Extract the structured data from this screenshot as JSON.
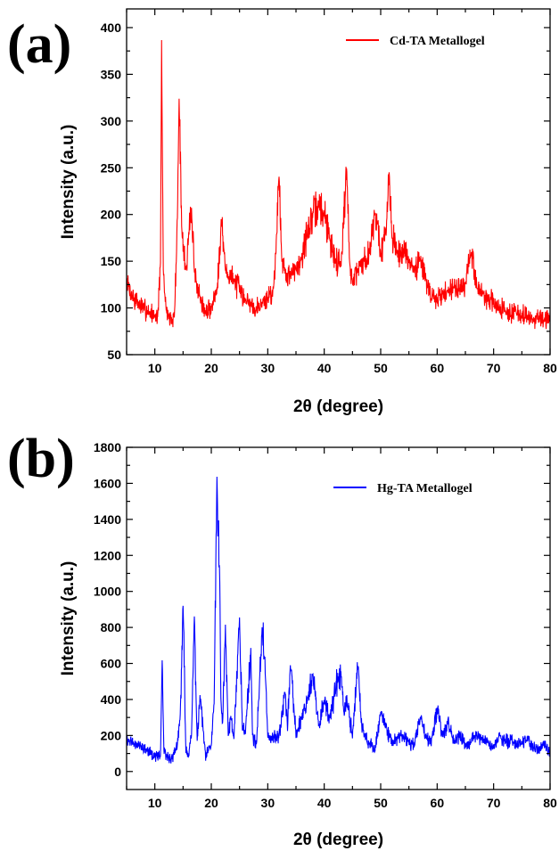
{
  "chart_data": [
    {
      "type": "line",
      "panel_label": "(a)",
      "xlabel": "2θ (degree)",
      "ylabel": "Intensity (a.u.)",
      "xlim": [
        5,
        80
      ],
      "ylim": [
        50,
        420
      ],
      "xticks": [
        10,
        20,
        30,
        40,
        50,
        60,
        70,
        80
      ],
      "yticks": [
        50,
        100,
        150,
        200,
        250,
        300,
        350,
        400
      ],
      "legend_position": "top-right",
      "grid": false,
      "series": [
        {
          "name": "Cd-TA Metallogel",
          "color": "#ff0000",
          "x": [
            5,
            6,
            7,
            8,
            9,
            10,
            10.5,
            11,
            11.2,
            11.5,
            12,
            12.5,
            13,
            13.5,
            14,
            14.3,
            14.8,
            15.5,
            16,
            16.5,
            17,
            18,
            19,
            20,
            21,
            21.8,
            22.5,
            23,
            24,
            25,
            26,
            27,
            28,
            29,
            30,
            31,
            31.5,
            32,
            32.5,
            33,
            34,
            35,
            36,
            37,
            38,
            39,
            40,
            41,
            42,
            43,
            44,
            44.5,
            45,
            46,
            47,
            48,
            49,
            50,
            51,
            51.5,
            52,
            53,
            54,
            55,
            56,
            57,
            58,
            59,
            60,
            61,
            62,
            63,
            64,
            65,
            66,
            67,
            68,
            69,
            70,
            71,
            72,
            73,
            74,
            75,
            76,
            77,
            78,
            79,
            80
          ],
          "y": [
            128,
            112,
            105,
            100,
            96,
            92,
            88,
            150,
            380,
            140,
            100,
            90,
            85,
            95,
            200,
            322,
            180,
            140,
            180,
            200,
            140,
            110,
            95,
            100,
            120,
            195,
            140,
            135,
            130,
            120,
            110,
            105,
            100,
            105,
            110,
            120,
            170,
            245,
            150,
            140,
            135,
            140,
            155,
            180,
            200,
            210,
            200,
            175,
            150,
            150,
            250,
            145,
            130,
            140,
            150,
            160,
            205,
            160,
            180,
            248,
            175,
            160,
            160,
            150,
            140,
            155,
            130,
            110,
            110,
            115,
            120,
            125,
            120,
            125,
            160,
            125,
            115,
            110,
            105,
            100,
            98,
            95,
            95,
            92,
            90,
            88,
            88,
            85,
            90
          ]
        }
      ]
    },
    {
      "type": "line",
      "panel_label": "(b)",
      "xlabel": "2θ (degree)",
      "ylabel": "Intensity (a.u.)",
      "xlim": [
        5,
        80
      ],
      "ylim": [
        -100,
        1800
      ],
      "xticks": [
        10,
        20,
        30,
        40,
        50,
        60,
        70,
        80
      ],
      "yticks": [
        0,
        200,
        400,
        600,
        800,
        1000,
        1200,
        1400,
        1600,
        1800
      ],
      "legend_position": "top-right",
      "grid": false,
      "series": [
        {
          "name": "Hg-TA Metallogel",
          "color": "#0000ff",
          "x": [
            5,
            6,
            7,
            8,
            9,
            10,
            11,
            11.3,
            11.6,
            12,
            13,
            14,
            14.5,
            15,
            15.5,
            16,
            16.5,
            17,
            17.5,
            18,
            19,
            20,
            20.5,
            21,
            21.5,
            21.7,
            22,
            22.5,
            23,
            23.5,
            24,
            25,
            25.5,
            26,
            27,
            27.3,
            28,
            28.5,
            29,
            29.5,
            30,
            31,
            32,
            33,
            33.5,
            34,
            35,
            36,
            37,
            38,
            39,
            40,
            41,
            42,
            42.5,
            43,
            43.5,
            44,
            45,
            46,
            46.5,
            47,
            48,
            49,
            50,
            51,
            52,
            53,
            54,
            55,
            56,
            57,
            58,
            59,
            60,
            61,
            62,
            63,
            64,
            65,
            66,
            67,
            68,
            69,
            70,
            71,
            72,
            73,
            74,
            75,
            76,
            77,
            78,
            79,
            80
          ],
          "y": [
            180,
            165,
            150,
            130,
            110,
            90,
            80,
            630,
            120,
            80,
            70,
            150,
            300,
            930,
            120,
            100,
            200,
            860,
            150,
            420,
            80,
            150,
            380,
            1600,
            1060,
            400,
            250,
            800,
            200,
            300,
            180,
            860,
            250,
            200,
            670,
            200,
            150,
            450,
            800,
            600,
            200,
            180,
            200,
            450,
            250,
            600,
            200,
            300,
            400,
            530,
            250,
            400,
            300,
            450,
            520,
            540,
            300,
            400,
            200,
            600,
            300,
            200,
            150,
            130,
            320,
            250,
            160,
            180,
            200,
            160,
            150,
            300,
            200,
            160,
            340,
            200,
            280,
            160,
            200,
            140,
            170,
            200,
            180,
            160,
            130,
            200,
            160,
            180,
            150,
            160,
            180,
            130,
            120,
            150,
            100
          ]
        }
      ]
    }
  ]
}
